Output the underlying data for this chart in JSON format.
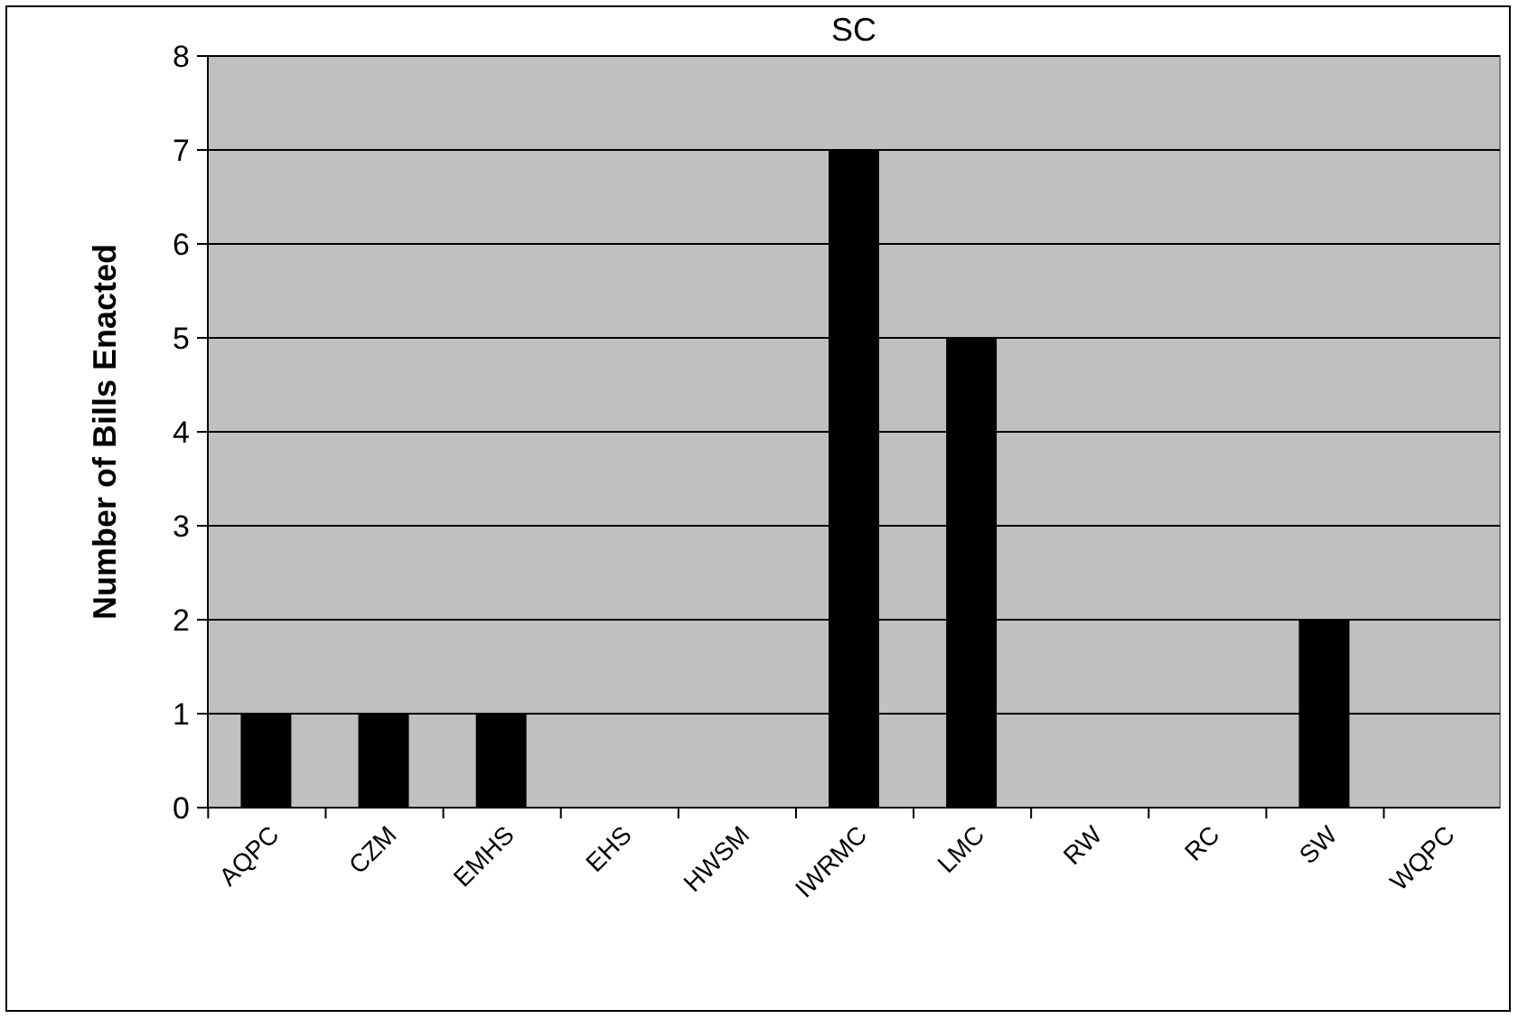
{
  "chart_data": {
    "type": "bar",
    "title": "SC",
    "ylabel": "Number of Bills Enacted",
    "categories": [
      "AQPC",
      "CZM",
      "EMHS",
      "EHS",
      "HWSM",
      "IWRMC",
      "LMC",
      "RW",
      "RC",
      "SW",
      "WQPC"
    ],
    "values": [
      1,
      1,
      1,
      0,
      0,
      7,
      5,
      0,
      0,
      2,
      0
    ],
    "color": "#000000",
    "ylim": [
      0,
      8
    ],
    "yticks": [
      0,
      1,
      2,
      3,
      4,
      5,
      6,
      7,
      8
    ],
    "grid": "y"
  }
}
